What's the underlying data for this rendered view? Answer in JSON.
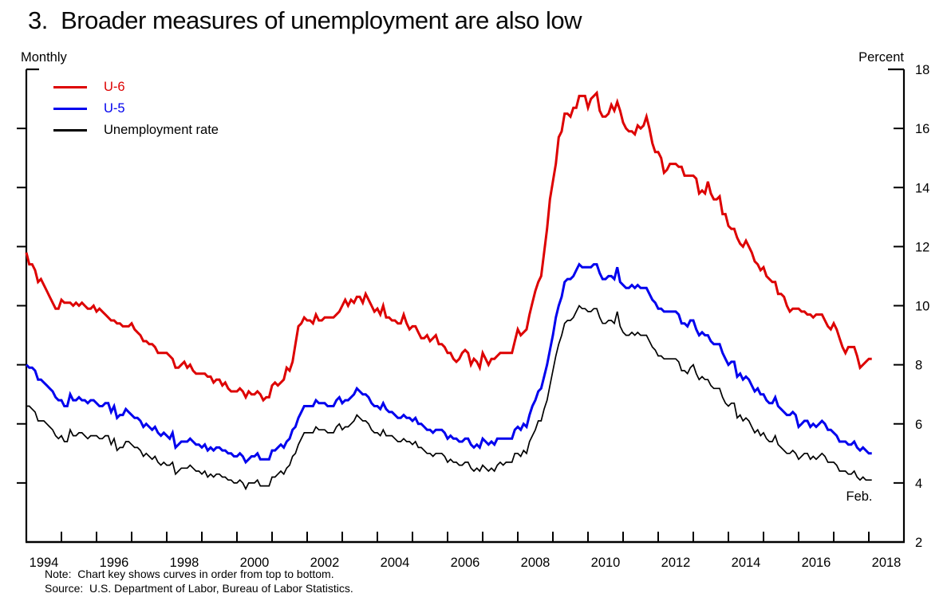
{
  "title": "3.  Broader measures of unemployment are also low",
  "frequency_label": "Monthly",
  "unit_label": "Percent",
  "annotation": "Feb.",
  "notes": {
    "note": "Note:  Chart key shows curves in order from top to bottom.",
    "source": "Source:  U.S. Department of Labor, Bureau of Labor Statistics."
  },
  "chart_data": {
    "type": "line",
    "title": "Broader measures of unemployment are also low",
    "xlabel": "",
    "ylabel": "Percent",
    "frequency": "monthly",
    "start": "1994-01",
    "end": "2018-02",
    "x_axis": {
      "min": 1994,
      "max": 2019,
      "tick_years_from": 1995,
      "tick_years_to": 2018,
      "label_years": [
        1994,
        1996,
        1998,
        2000,
        2002,
        2004,
        2006,
        2008,
        2010,
        2012,
        2014,
        2016,
        2018
      ]
    },
    "y_axis": {
      "min": 2,
      "max": 18,
      "tick_step": 2,
      "tick_labels": [
        18,
        16,
        14,
        12,
        10,
        8,
        6,
        4,
        2
      ]
    },
    "legend_position": "top-left",
    "last_point_label": "Feb.",
    "series": [
      {
        "name": "U-6",
        "color": "#dd0000",
        "width": 3,
        "values": [
          11.8,
          11.4,
          11.4,
          11.2,
          10.8,
          10.9,
          10.7,
          10.5,
          10.3,
          10.1,
          9.9,
          9.9,
          10.2,
          10.1,
          10.1,
          10.1,
          10.0,
          10.1,
          10.0,
          10.1,
          10.0,
          9.9,
          9.9,
          10.0,
          9.8,
          9.9,
          9.8,
          9.7,
          9.6,
          9.5,
          9.5,
          9.4,
          9.4,
          9.3,
          9.3,
          9.3,
          9.4,
          9.2,
          9.1,
          9.0,
          8.8,
          8.8,
          8.7,
          8.7,
          8.6,
          8.4,
          8.4,
          8.4,
          8.4,
          8.3,
          8.2,
          7.9,
          7.9,
          8.0,
          8.1,
          7.9,
          8.0,
          7.8,
          7.7,
          7.7,
          7.7,
          7.7,
          7.6,
          7.6,
          7.4,
          7.5,
          7.5,
          7.3,
          7.4,
          7.2,
          7.1,
          7.1,
          7.1,
          7.2,
          7.1,
          6.9,
          7.1,
          7.0,
          7.0,
          7.1,
          7.0,
          6.8,
          6.9,
          6.9,
          7.3,
          7.4,
          7.3,
          7.4,
          7.5,
          7.9,
          7.8,
          8.1,
          8.7,
          9.3,
          9.4,
          9.6,
          9.5,
          9.5,
          9.4,
          9.7,
          9.5,
          9.5,
          9.6,
          9.6,
          9.6,
          9.6,
          9.7,
          9.8,
          10.0,
          10.2,
          10.0,
          10.2,
          10.1,
          10.3,
          10.3,
          10.1,
          10.4,
          10.2,
          10.0,
          9.8,
          9.9,
          9.7,
          10.0,
          9.6,
          9.6,
          9.5,
          9.5,
          9.4,
          9.4,
          9.7,
          9.4,
          9.2,
          9.3,
          9.3,
          9.1,
          8.9,
          8.9,
          9.0,
          8.8,
          8.9,
          9.0,
          8.7,
          8.7,
          8.6,
          8.4,
          8.4,
          8.2,
          8.1,
          8.2,
          8.4,
          8.5,
          8.4,
          8.0,
          8.2,
          8.1,
          7.9,
          8.4,
          8.2,
          8.0,
          8.2,
          8.2,
          8.3,
          8.4,
          8.4,
          8.4,
          8.4,
          8.4,
          8.8,
          9.2,
          9.0,
          9.1,
          9.2,
          9.7,
          10.1,
          10.5,
          10.8,
          11.0,
          11.8,
          12.6,
          13.6,
          14.2,
          14.8,
          15.7,
          15.9,
          16.5,
          16.5,
          16.4,
          16.7,
          16.7,
          17.1,
          17.1,
          17.1,
          16.7,
          17.0,
          17.1,
          17.2,
          16.6,
          16.4,
          16.4,
          16.5,
          16.8,
          16.6,
          16.9,
          16.6,
          16.2,
          16.0,
          15.9,
          15.9,
          15.8,
          16.1,
          16.0,
          16.1,
          16.4,
          16.0,
          15.5,
          15.2,
          15.2,
          15.0,
          14.5,
          14.6,
          14.8,
          14.8,
          14.8,
          14.7,
          14.7,
          14.4,
          14.4,
          14.4,
          14.4,
          14.3,
          13.8,
          13.9,
          13.8,
          14.2,
          13.8,
          13.6,
          13.6,
          13.7,
          13.1,
          13.1,
          12.7,
          12.6,
          12.6,
          12.3,
          12.1,
          12.0,
          12.2,
          12.0,
          11.8,
          11.5,
          11.4,
          11.2,
          11.3,
          11.0,
          10.9,
          10.8,
          10.8,
          10.4,
          10.4,
          10.3,
          10.0,
          9.8,
          9.9,
          9.9,
          9.9,
          9.8,
          9.8,
          9.7,
          9.7,
          9.6,
          9.7,
          9.7,
          9.7,
          9.5,
          9.3,
          9.2,
          9.4,
          9.2,
          8.9,
          8.6,
          8.4,
          8.6,
          8.6,
          8.6,
          8.3,
          7.9,
          8.0,
          8.1,
          8.2,
          8.2
        ]
      },
      {
        "name": "U-5",
        "color": "#0000ee",
        "width": 3,
        "values": [
          8.0,
          7.9,
          7.9,
          7.8,
          7.5,
          7.5,
          7.4,
          7.3,
          7.2,
          7.1,
          6.9,
          6.8,
          6.8,
          6.6,
          6.6,
          7.0,
          6.8,
          6.8,
          6.9,
          6.8,
          6.8,
          6.7,
          6.8,
          6.8,
          6.7,
          6.6,
          6.6,
          6.7,
          6.7,
          6.4,
          6.6,
          6.2,
          6.3,
          6.3,
          6.5,
          6.4,
          6.3,
          6.2,
          6.2,
          6.1,
          5.9,
          6.0,
          5.9,
          5.8,
          5.9,
          5.7,
          5.6,
          5.7,
          5.6,
          5.5,
          5.7,
          5.2,
          5.3,
          5.4,
          5.4,
          5.4,
          5.5,
          5.4,
          5.3,
          5.3,
          5.2,
          5.3,
          5.1,
          5.2,
          5.1,
          5.2,
          5.2,
          5.1,
          5.1,
          5.0,
          5.0,
          4.9,
          4.9,
          5.0,
          4.9,
          4.7,
          4.8,
          4.9,
          4.9,
          5.0,
          4.8,
          4.8,
          4.8,
          4.8,
          5.1,
          5.1,
          5.2,
          5.3,
          5.2,
          5.4,
          5.5,
          5.8,
          5.9,
          6.2,
          6.4,
          6.6,
          6.6,
          6.6,
          6.6,
          6.8,
          6.7,
          6.7,
          6.7,
          6.6,
          6.6,
          6.6,
          6.8,
          6.9,
          6.7,
          6.8,
          6.8,
          6.9,
          7.0,
          7.2,
          7.1,
          7.0,
          7.0,
          6.9,
          6.7,
          6.6,
          6.6,
          6.5,
          6.7,
          6.5,
          6.4,
          6.4,
          6.3,
          6.2,
          6.2,
          6.3,
          6.2,
          6.2,
          6.1,
          6.2,
          6.0,
          6.0,
          5.9,
          5.8,
          5.8,
          5.7,
          5.8,
          5.8,
          5.8,
          5.7,
          5.5,
          5.6,
          5.5,
          5.5,
          5.4,
          5.4,
          5.5,
          5.5,
          5.3,
          5.2,
          5.3,
          5.2,
          5.5,
          5.4,
          5.3,
          5.4,
          5.3,
          5.5,
          5.5,
          5.5,
          5.5,
          5.5,
          5.5,
          5.8,
          5.9,
          5.8,
          6.0,
          5.9,
          6.3,
          6.6,
          6.8,
          7.1,
          7.2,
          7.6,
          8.0,
          8.5,
          9.0,
          9.6,
          10.0,
          10.3,
          10.8,
          10.9,
          10.9,
          11.0,
          11.2,
          11.4,
          11.3,
          11.3,
          11.3,
          11.3,
          11.4,
          11.4,
          11.1,
          10.9,
          10.9,
          11.0,
          11.0,
          10.9,
          11.3,
          10.8,
          10.7,
          10.6,
          10.6,
          10.7,
          10.6,
          10.7,
          10.6,
          10.6,
          10.6,
          10.4,
          10.2,
          10.1,
          9.9,
          9.9,
          9.8,
          9.8,
          9.8,
          9.8,
          9.8,
          9.7,
          9.4,
          9.4,
          9.3,
          9.5,
          9.5,
          9.2,
          9.0,
          9.1,
          9.0,
          9.0,
          8.8,
          8.7,
          8.7,
          8.7,
          8.4,
          8.2,
          8.0,
          8.1,
          8.1,
          7.6,
          7.7,
          7.5,
          7.6,
          7.5,
          7.3,
          7.1,
          7.2,
          7.0,
          7.0,
          6.8,
          6.7,
          6.7,
          6.9,
          6.6,
          6.5,
          6.4,
          6.3,
          6.3,
          6.4,
          6.3,
          5.9,
          6.0,
          6.1,
          6.1,
          5.9,
          6.0,
          5.9,
          6.0,
          6.1,
          6.0,
          5.8,
          5.8,
          5.7,
          5.6,
          5.4,
          5.4,
          5.4,
          5.3,
          5.3,
          5.4,
          5.2,
          5.1,
          5.2,
          5.1,
          5.0,
          5.0
        ]
      },
      {
        "name": "Unemployment rate",
        "color": "#000000",
        "width": 1.7,
        "values": [
          6.6,
          6.6,
          6.5,
          6.4,
          6.1,
          6.1,
          6.1,
          6.0,
          5.9,
          5.8,
          5.6,
          5.5,
          5.6,
          5.4,
          5.4,
          5.8,
          5.6,
          5.6,
          5.7,
          5.7,
          5.6,
          5.5,
          5.6,
          5.6,
          5.6,
          5.5,
          5.5,
          5.6,
          5.6,
          5.3,
          5.5,
          5.1,
          5.2,
          5.2,
          5.4,
          5.4,
          5.3,
          5.2,
          5.2,
          5.1,
          4.9,
          5.0,
          4.9,
          4.8,
          4.9,
          4.7,
          4.6,
          4.7,
          4.6,
          4.6,
          4.7,
          4.3,
          4.4,
          4.5,
          4.5,
          4.5,
          4.6,
          4.5,
          4.4,
          4.4,
          4.3,
          4.4,
          4.2,
          4.3,
          4.2,
          4.3,
          4.3,
          4.2,
          4.2,
          4.1,
          4.1,
          4.0,
          4.0,
          4.1,
          4.0,
          3.8,
          4.0,
          4.0,
          4.0,
          4.1,
          3.9,
          3.9,
          3.9,
          3.9,
          4.2,
          4.2,
          4.3,
          4.4,
          4.3,
          4.5,
          4.6,
          4.9,
          5.0,
          5.3,
          5.5,
          5.7,
          5.7,
          5.7,
          5.7,
          5.9,
          5.8,
          5.8,
          5.8,
          5.7,
          5.7,
          5.7,
          5.9,
          6.0,
          5.8,
          5.9,
          5.9,
          6.0,
          6.1,
          6.3,
          6.2,
          6.1,
          6.1,
          6.0,
          5.8,
          5.7,
          5.7,
          5.6,
          5.8,
          5.6,
          5.6,
          5.6,
          5.5,
          5.4,
          5.4,
          5.5,
          5.4,
          5.4,
          5.3,
          5.4,
          5.2,
          5.2,
          5.1,
          5.0,
          5.0,
          4.9,
          5.0,
          5.0,
          5.0,
          4.9,
          4.7,
          4.8,
          4.7,
          4.7,
          4.6,
          4.6,
          4.7,
          4.7,
          4.5,
          4.4,
          4.5,
          4.4,
          4.6,
          4.5,
          4.4,
          4.5,
          4.4,
          4.6,
          4.7,
          4.6,
          4.7,
          4.7,
          4.7,
          5.0,
          5.0,
          4.9,
          5.1,
          5.0,
          5.4,
          5.6,
          5.8,
          6.1,
          6.1,
          6.5,
          6.8,
          7.3,
          7.8,
          8.3,
          8.7,
          9.0,
          9.4,
          9.5,
          9.5,
          9.6,
          9.8,
          10.0,
          9.9,
          9.9,
          9.8,
          9.8,
          9.9,
          9.9,
          9.6,
          9.4,
          9.4,
          9.5,
          9.5,
          9.4,
          9.8,
          9.3,
          9.1,
          9.0,
          9.0,
          9.1,
          9.0,
          9.1,
          9.0,
          9.0,
          9.0,
          8.8,
          8.6,
          8.5,
          8.3,
          8.3,
          8.2,
          8.2,
          8.2,
          8.2,
          8.2,
          8.1,
          7.8,
          7.8,
          7.7,
          7.9,
          8.0,
          7.7,
          7.5,
          7.6,
          7.5,
          7.5,
          7.3,
          7.2,
          7.2,
          7.2,
          6.9,
          6.7,
          6.6,
          6.7,
          6.7,
          6.2,
          6.3,
          6.1,
          6.2,
          6.1,
          5.9,
          5.7,
          5.8,
          5.6,
          5.7,
          5.5,
          5.4,
          5.4,
          5.6,
          5.3,
          5.2,
          5.1,
          5.0,
          5.0,
          5.1,
          5.0,
          4.8,
          4.9,
          5.0,
          5.0,
          4.8,
          4.9,
          4.8,
          4.9,
          5.0,
          4.9,
          4.7,
          4.7,
          4.7,
          4.6,
          4.4,
          4.4,
          4.4,
          4.3,
          4.3,
          4.4,
          4.2,
          4.1,
          4.2,
          4.1,
          4.1,
          4.1
        ]
      }
    ]
  }
}
